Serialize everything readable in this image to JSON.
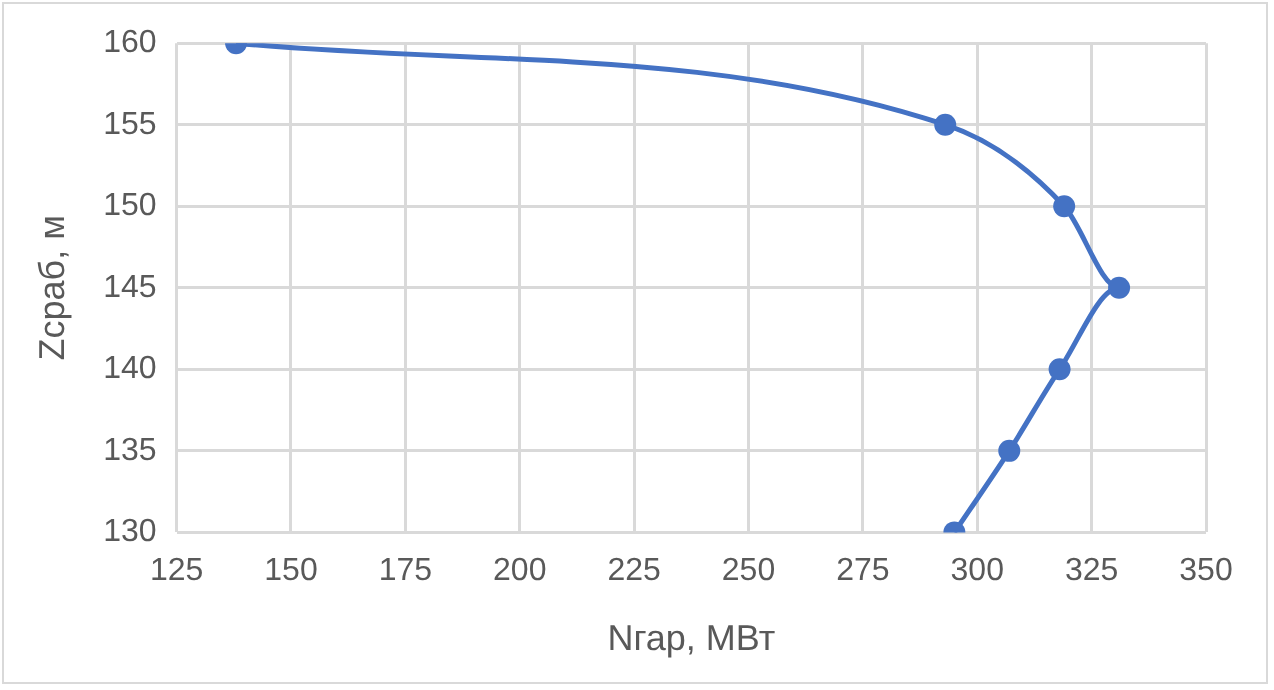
{
  "chart_data": {
    "type": "line",
    "xlabel": "Nгар, МВт",
    "ylabel": "Zсраб, м",
    "series": [
      {
        "color": "#4472c4",
        "x": [
          138,
          293,
          319,
          331,
          318,
          307,
          295
        ],
        "values": [
          160,
          155,
          150,
          145,
          140,
          135,
          130
        ]
      }
    ],
    "xlim": [
      125,
      350
    ],
    "xticks": [
      125,
      150,
      175,
      200,
      225,
      250,
      275,
      300,
      325,
      350
    ],
    "ylim": [
      130,
      160
    ],
    "yticks": [
      130,
      135,
      140,
      145,
      150,
      155,
      160
    ],
    "grid": true,
    "legend": false,
    "marker": "circle"
  }
}
